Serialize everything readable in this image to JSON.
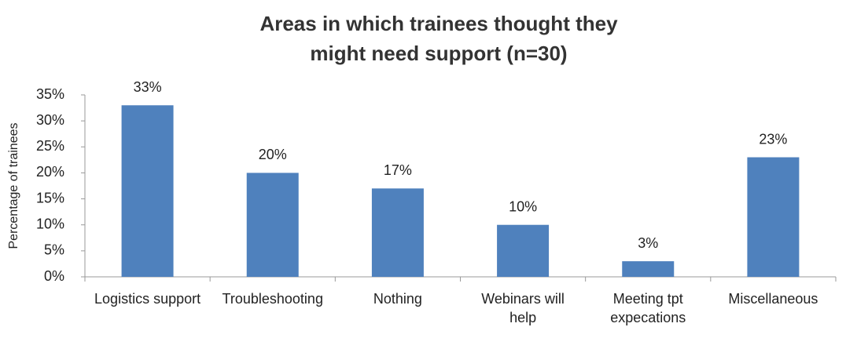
{
  "chart_data": {
    "type": "bar",
    "title": [
      "Areas in which trainees thought they",
      "might need support (n=30)"
    ],
    "ylabel": "Percentage of trainees",
    "categories": [
      "Logistics support",
      "Troubleshooting",
      "Nothing",
      "Webinars will\nhelp",
      "Meeting tpt\nexpecations",
      "Miscellaneous"
    ],
    "values": [
      33,
      20,
      17,
      10,
      3,
      23
    ],
    "value_labels": [
      "33%",
      "20%",
      "17%",
      "10%",
      "3%",
      "23%"
    ],
    "color": "#4f81bd",
    "ylim": [
      0,
      35
    ],
    "yticks": [
      {
        "value": 0,
        "label": "0%"
      },
      {
        "value": 5,
        "label": "5%"
      },
      {
        "value": 10,
        "label": "10%"
      },
      {
        "value": 15,
        "label": "15%"
      },
      {
        "value": 20,
        "label": "20%"
      },
      {
        "value": 25,
        "label": "25%"
      },
      {
        "value": 30,
        "label": "30%"
      },
      {
        "value": 35,
        "label": "35%"
      }
    ]
  }
}
